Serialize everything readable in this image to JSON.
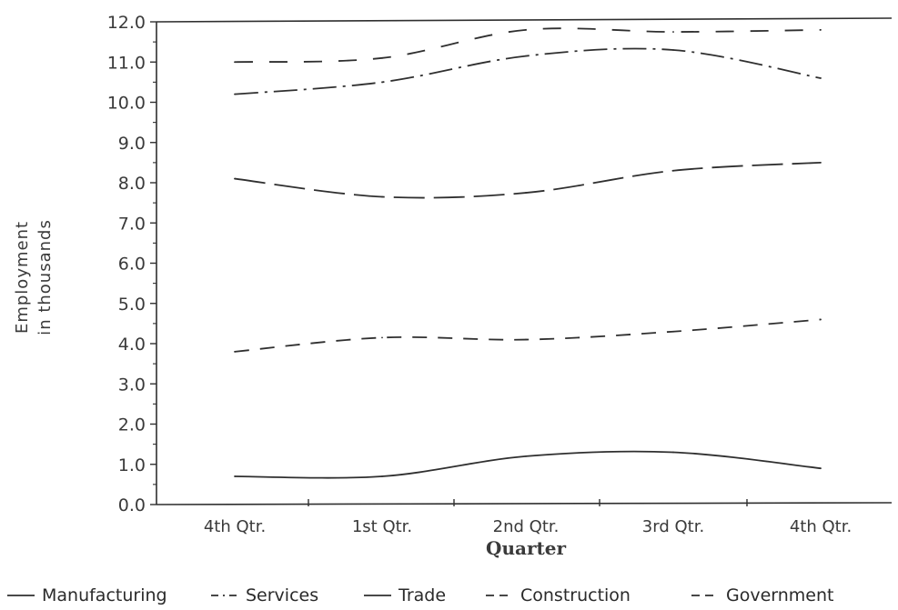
{
  "chart_data": {
    "type": "line",
    "title": "",
    "xlabel": "Quarter",
    "ylabel_lines": [
      "Employment",
      "in thousands"
    ],
    "ylim": [
      0,
      12
    ],
    "yticks": [
      "0.0",
      "1.0",
      "2.0",
      "3.0",
      "4.0",
      "5.0",
      "6.0",
      "7.0",
      "8.0",
      "9.0",
      "10.0",
      "11.0",
      "12.0"
    ],
    "categories": [
      "4th Qtr.",
      "1st Qtr.",
      "2nd Qtr.",
      "3rd Qtr.",
      "4th Qtr."
    ],
    "grid": false,
    "legend_position": "bottom",
    "series": [
      {
        "name": "Manufacturing",
        "style": "solid",
        "values": [
          0.7,
          0.7,
          1.2,
          1.3,
          0.9
        ]
      },
      {
        "name": "Services",
        "style": "dashdot",
        "values": [
          10.2,
          10.5,
          11.15,
          11.3,
          10.6
        ]
      },
      {
        "name": "Trade",
        "style": "longdash",
        "values": [
          8.1,
          7.65,
          7.75,
          8.3,
          8.5
        ]
      },
      {
        "name": "Construction",
        "style": "dashed",
        "values": [
          3.8,
          4.15,
          4.1,
          4.3,
          4.6
        ]
      },
      {
        "name": "Government",
        "style": "dashed2",
        "values": [
          11.0,
          11.1,
          11.8,
          11.75,
          11.8
        ]
      }
    ],
    "legend_labels": [
      "Manufacturing",
      "Services",
      "Trade",
      "Construction",
      "Government"
    ]
  },
  "colors": {
    "ink": "#2f2f2f",
    "background": "#ffffff"
  }
}
